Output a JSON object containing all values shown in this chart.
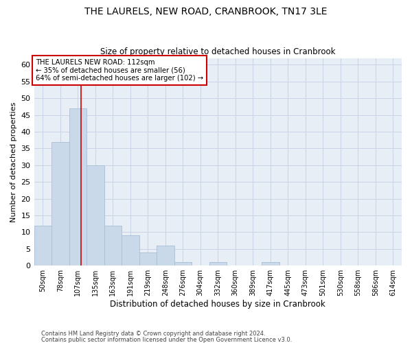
{
  "title": "THE LAURELS, NEW ROAD, CRANBROOK, TN17 3LE",
  "subtitle": "Size of property relative to detached houses in Cranbrook",
  "xlabel": "Distribution of detached houses by size in Cranbrook",
  "ylabel": "Number of detached properties",
  "categories": [
    "50sqm",
    "78sqm",
    "107sqm",
    "135sqm",
    "163sqm",
    "191sqm",
    "219sqm",
    "248sqm",
    "276sqm",
    "304sqm",
    "332sqm",
    "360sqm",
    "389sqm",
    "417sqm",
    "445sqm",
    "473sqm",
    "501sqm",
    "530sqm",
    "558sqm",
    "586sqm",
    "614sqm"
  ],
  "values": [
    12,
    37,
    47,
    30,
    12,
    9,
    4,
    6,
    1,
    0,
    1,
    0,
    0,
    1,
    0,
    0,
    0,
    0,
    0,
    0,
    0
  ],
  "bar_color": "#c9d9ea",
  "bar_edge_color": "#a8bfd4",
  "red_line_x": 2.18,
  "ylim": [
    0,
    62
  ],
  "yticks": [
    0,
    5,
    10,
    15,
    20,
    25,
    30,
    35,
    40,
    45,
    50,
    55,
    60
  ],
  "annotation_text": "THE LAURELS NEW ROAD: 112sqm\n← 35% of detached houses are smaller (56)\n64% of semi-detached houses are larger (102) →",
  "annotation_box_color": "#ffffff",
  "annotation_box_edge_color": "#cc0000",
  "footer1": "Contains HM Land Registry data © Crown copyright and database right 2024.",
  "footer2": "Contains public sector information licensed under the Open Government Licence v3.0.",
  "background_color": "#ffffff",
  "axes_bg_color": "#e8eef5",
  "grid_color": "#c8d4e4"
}
